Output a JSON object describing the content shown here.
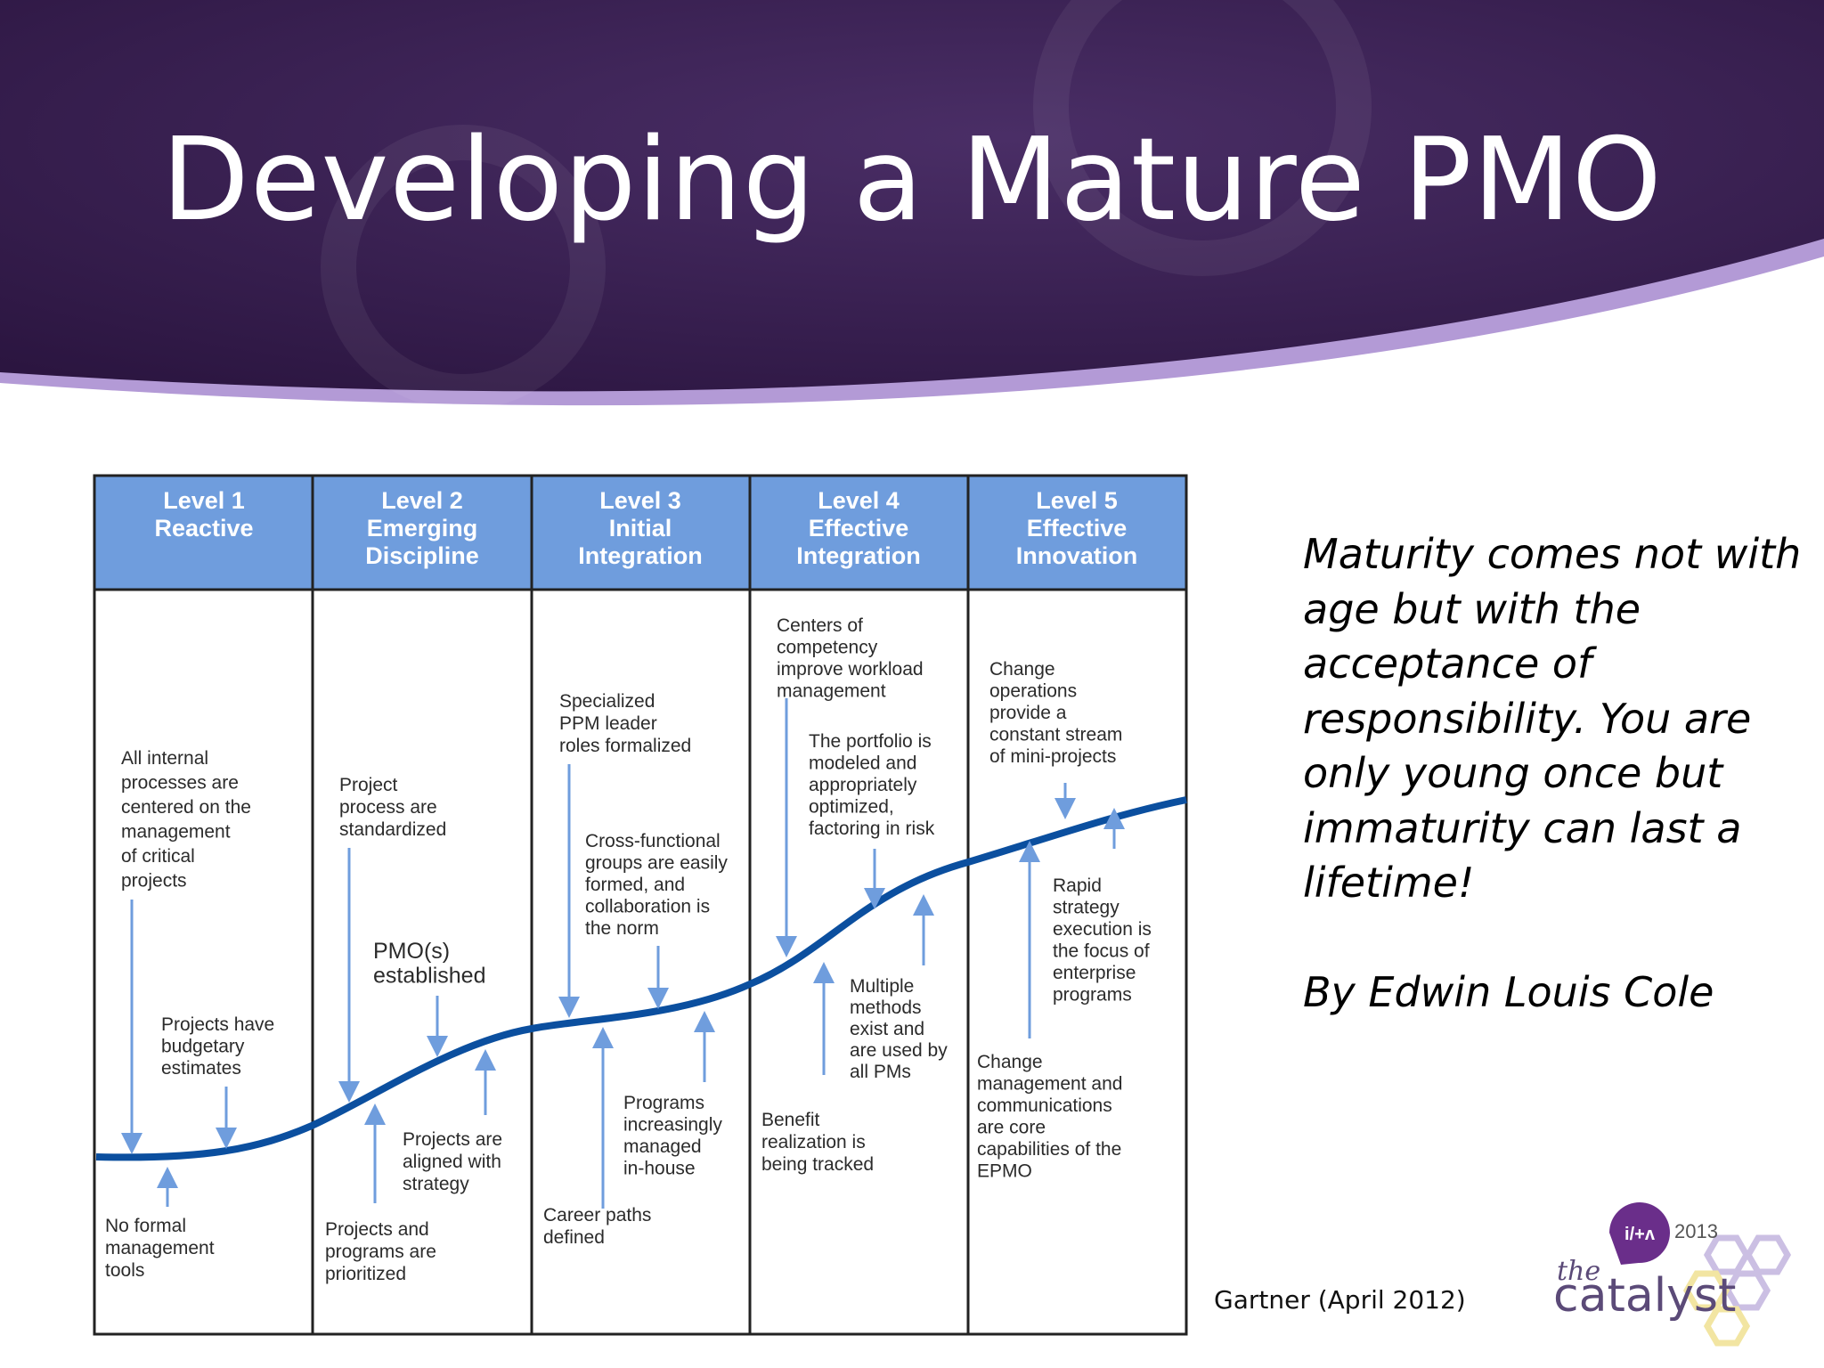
{
  "title": "Developing a Mature PMO",
  "colors": {
    "banner": "#3b2151",
    "banner_accent": "#b39ad6",
    "header_fill": "#6f9ddd",
    "curve": "#0b4f9f",
    "arrow": "#6f9ddd"
  },
  "levels": [
    {
      "number": "Level 1",
      "name": [
        "Reactive"
      ]
    },
    {
      "number": "Level 2",
      "name": [
        "Emerging",
        "Discipline"
      ]
    },
    {
      "number": "Level 3",
      "name": [
        "Initial",
        "Integration"
      ]
    },
    {
      "number": "Level 4",
      "name": [
        "Effective",
        "Integration"
      ]
    },
    {
      "number": "Level 5",
      "name": [
        "Effective",
        "Innovation"
      ]
    }
  ],
  "labels": [
    {
      "id": "all-internal-processes",
      "lines": [
        "All internal",
        "processes are",
        "centered on the",
        "management",
        "of critical",
        "projects"
      ]
    },
    {
      "id": "projects-budgetary",
      "lines": [
        "Projects have",
        "budgetary",
        "estimates"
      ]
    },
    {
      "id": "no-formal-tools",
      "lines": [
        "No formal",
        "management",
        "tools"
      ]
    },
    {
      "id": "project-process-standardized",
      "lines": [
        "Project",
        "process are",
        "standardized"
      ]
    },
    {
      "id": "pmo-established",
      "lines": [
        "PMO(s)",
        "established"
      ]
    },
    {
      "id": "projects-aligned",
      "lines": [
        "Projects are",
        "aligned with",
        "strategy"
      ]
    },
    {
      "id": "projects-programs-prioritized",
      "lines": [
        "Projects and",
        "programs are",
        "prioritized"
      ]
    },
    {
      "id": "specialized-ppm",
      "lines": [
        "Specialized",
        "PPM leader",
        "roles formalized"
      ]
    },
    {
      "id": "cross-functional",
      "lines": [
        "Cross-functional",
        "groups are easily",
        "formed, and",
        "collaboration is",
        "the norm"
      ]
    },
    {
      "id": "programs-in-house",
      "lines": [
        "Programs",
        "increasingly",
        "managed",
        "in-house"
      ]
    },
    {
      "id": "career-paths",
      "lines": [
        "Career paths",
        "defined"
      ]
    },
    {
      "id": "centers-of-competency",
      "lines": [
        "Centers of",
        "competency",
        "improve workload",
        "management"
      ]
    },
    {
      "id": "portfolio-modeled",
      "lines": [
        "The portfolio is",
        "modeled and",
        "appropriately",
        "optimized,",
        "factoring in risk"
      ]
    },
    {
      "id": "multiple-methods",
      "lines": [
        "Multiple",
        "methods",
        "exist and",
        "are used by",
        "all PMs"
      ]
    },
    {
      "id": "benefit-realization",
      "lines": [
        "Benefit",
        "realization is",
        "being tracked"
      ]
    },
    {
      "id": "change-operations",
      "lines": [
        "Change",
        "operations",
        "provide a",
        "constant stream",
        "of mini-projects"
      ]
    },
    {
      "id": "rapid-strategy",
      "lines": [
        "Rapid",
        "strategy",
        "execution  is",
        "the focus of",
        "enterprise",
        "programs"
      ]
    },
    {
      "id": "change-management",
      "lines": [
        "Change",
        "management and",
        "communications",
        "are core",
        "capabilities of the",
        "EPMO"
      ]
    }
  ],
  "quote": {
    "text": "Maturity comes not with age but with the acceptance of responsibility. You are only young once but immaturity can last a lifetime!",
    "author": "By Edwin Louis Cole"
  },
  "source": "Gartner (April 2012)",
  "logo": {
    "badge": "i/+ʌ",
    "year": "2013",
    "the": "the",
    "name": "catalyst"
  }
}
